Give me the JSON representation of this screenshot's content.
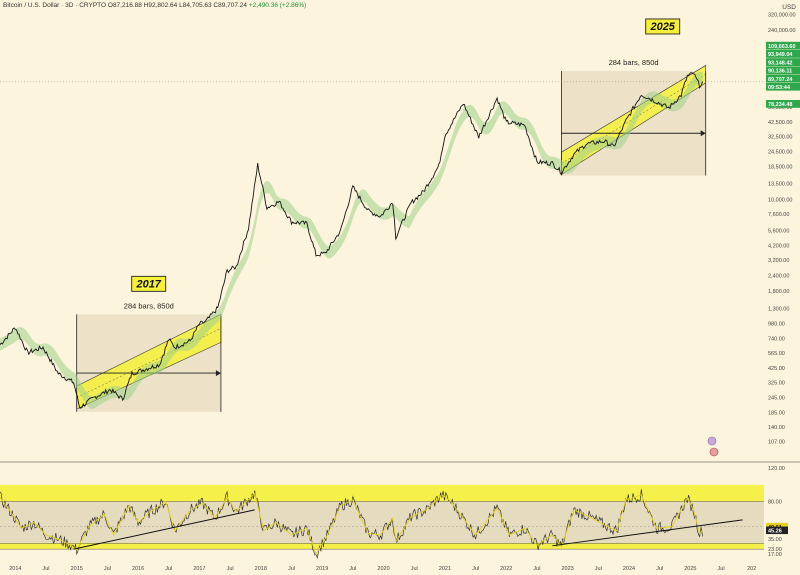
{
  "header": {
    "symbol": "Bitcoin / U.S. Dollar · 3D · CRYPTO",
    "ohlc": "O87,216.88 H92,802.64 L84,705.63 C89,707.24",
    "change": "+2,490.36 (+2.86%)",
    "currency": "USD"
  },
  "chart_data": [
    {
      "type": "line",
      "description_series": "BTC price (log scale)",
      "yscale": "log",
      "ylim": [
        75,
        320000
      ],
      "price_ticks": [
        320000,
        240000,
        180000,
        130000,
        93148.42,
        56500,
        42500,
        32500,
        24500,
        18500,
        13500,
        10000,
        7600,
        5600,
        4200,
        3200,
        2400,
        1800,
        1300,
        980,
        740,
        565,
        425,
        325,
        245,
        185,
        140,
        107
      ],
      "price_tick_labels": [
        "320,000.00",
        "240,000.00",
        "180,000.00",
        "130,000.00",
        "93,148.42",
        "56,500.00",
        "42,500.00",
        "32,500.00",
        "24,500.00",
        "18,500.00",
        "13,500.00",
        "10,000.00",
        "7,600.00",
        "5,600.00",
        "4,200.00",
        "3,200.00",
        "2,400.00",
        "1,800.00",
        "1,300.00",
        "980.00",
        "740.00",
        "565.00",
        "425.00",
        "325.00",
        "245.00",
        "185.00",
        "140.00",
        "107.00"
      ],
      "x_ticks": [
        "2014",
        "Jul",
        "2015",
        "Jul",
        "2016",
        "Jul",
        "2017",
        "Jul",
        "2018",
        "Jul",
        "2019",
        "Jul",
        "2020",
        "Jul",
        "2021",
        "Jul",
        "2022",
        "Jul",
        "2023",
        "Jul",
        "2024",
        "Jul",
        "2025",
        "Jul",
        "202"
      ],
      "price_points": [
        [
          2013.75,
          650
        ],
        [
          2014.0,
          900
        ],
        [
          2014.2,
          560
        ],
        [
          2014.45,
          620
        ],
        [
          2014.7,
          380
        ],
        [
          2014.95,
          320
        ],
        [
          2015.05,
          200
        ],
        [
          2015.3,
          245
        ],
        [
          2015.55,
          280
        ],
        [
          2015.75,
          235
        ],
        [
          2015.9,
          380
        ],
        [
          2016.1,
          410
        ],
        [
          2016.35,
          450
        ],
        [
          2016.5,
          720
        ],
        [
          2016.6,
          620
        ],
        [
          2016.85,
          700
        ],
        [
          2017.0,
          960
        ],
        [
          2017.1,
          1000
        ],
        [
          2017.3,
          1300
        ],
        [
          2017.45,
          2600
        ],
        [
          2017.6,
          2800
        ],
        [
          2017.8,
          5800
        ],
        [
          2017.95,
          19000
        ],
        [
          2018.1,
          8500
        ],
        [
          2018.3,
          9500
        ],
        [
          2018.5,
          6500
        ],
        [
          2018.75,
          6300
        ],
        [
          2018.9,
          3500
        ],
        [
          2019.05,
          3600
        ],
        [
          2019.3,
          5500
        ],
        [
          2019.5,
          12500
        ],
        [
          2019.75,
          8000
        ],
        [
          2019.95,
          7200
        ],
        [
          2020.15,
          9500
        ],
        [
          2020.2,
          4900
        ],
        [
          2020.45,
          9300
        ],
        [
          2020.65,
          11500
        ],
        [
          2020.9,
          18500
        ],
        [
          2021.0,
          33000
        ],
        [
          2021.3,
          60000
        ],
        [
          2021.55,
          32000
        ],
        [
          2021.85,
          66000
        ],
        [
          2022.0,
          42000
        ],
        [
          2022.3,
          40000
        ],
        [
          2022.5,
          20000
        ],
        [
          2022.75,
          19500
        ],
        [
          2022.9,
          16500
        ],
        [
          2023.1,
          23000
        ],
        [
          2023.3,
          28000
        ],
        [
          2023.6,
          29500
        ],
        [
          2023.75,
          26500
        ],
        [
          2023.95,
          43000
        ],
        [
          2024.2,
          71000
        ],
        [
          2024.5,
          60000
        ],
        [
          2024.65,
          55000
        ],
        [
          2024.85,
          70000
        ],
        [
          2024.95,
          100000
        ],
        [
          2025.05,
          105000
        ],
        [
          2025.15,
          84000
        ],
        [
          2025.2,
          89707.24
        ]
      ],
      "current_price": "89,707.24",
      "price_label_stack": [
        "109,663.60",
        "93,949.04",
        "93,148.42",
        "90,136.11",
        "89,707.24",
        "09:53:44",
        "78,234.48"
      ],
      "annotations": [
        {
          "label": "2017",
          "note": "284 bars, 850d",
          "x0": 2015.0,
          "x1": 2017.35,
          "ylo": 185,
          "yhi": 1150,
          "c_lo": [
            2015.0,
            195,
            2017.35,
            680
          ],
          "c_hi": [
            2015.0,
            300,
            2017.35,
            1150
          ]
        },
        {
          "label": "2025",
          "note": "284 bars, 850d",
          "x0": 2022.9,
          "x1": 2025.25,
          "ylo": 15500,
          "yhi": 110000,
          "c_lo": [
            2022.9,
            15800,
            2025.25,
            88000
          ],
          "c_hi": [
            2022.9,
            24000,
            2025.25,
            122000
          ]
        }
      ]
    },
    {
      "type": "line",
      "description_series": "RSI",
      "ylim": [
        10,
        125
      ],
      "rsi_ticks": [
        120,
        80,
        49.61,
        45.26,
        35,
        23,
        17
      ],
      "rsi_tick_labels": [
        "120.00",
        "80.00",
        "49.61",
        "45.26",
        "35.00",
        "23.00",
        "17.00"
      ],
      "bands": {
        "top": [
          100,
          80
        ],
        "bottom": [
          23,
          30
        ]
      },
      "rsi_points": [
        [
          2013.75,
          85
        ],
        [
          2013.95,
          65
        ],
        [
          2014.1,
          48
        ],
        [
          2014.3,
          55
        ],
        [
          2014.5,
          40
        ],
        [
          2014.7,
          35
        ],
        [
          2014.9,
          28
        ],
        [
          2015.0,
          22
        ],
        [
          2015.2,
          50
        ],
        [
          2015.45,
          65
        ],
        [
          2015.6,
          40
        ],
        [
          2015.85,
          75
        ],
        [
          2016.0,
          55
        ],
        [
          2016.2,
          68
        ],
        [
          2016.45,
          80
        ],
        [
          2016.6,
          45
        ],
        [
          2016.85,
          70
        ],
        [
          2017.05,
          78
        ],
        [
          2017.25,
          60
        ],
        [
          2017.45,
          85
        ],
        [
          2017.6,
          68
        ],
        [
          2017.9,
          90
        ],
        [
          2018.05,
          45
        ],
        [
          2018.25,
          55
        ],
        [
          2018.5,
          40
        ],
        [
          2018.75,
          48
        ],
        [
          2018.9,
          17
        ],
        [
          2019.1,
          42
        ],
        [
          2019.3,
          75
        ],
        [
          2019.5,
          82
        ],
        [
          2019.75,
          42
        ],
        [
          2019.95,
          40
        ],
        [
          2020.15,
          60
        ],
        [
          2020.2,
          32
        ],
        [
          2020.45,
          62
        ],
        [
          2020.7,
          70
        ],
        [
          2020.95,
          88
        ],
        [
          2021.1,
          80
        ],
        [
          2021.3,
          60
        ],
        [
          2021.5,
          40
        ],
        [
          2021.85,
          72
        ],
        [
          2022.05,
          40
        ],
        [
          2022.3,
          48
        ],
        [
          2022.5,
          28
        ],
        [
          2022.75,
          40
        ],
        [
          2022.9,
          26
        ],
        [
          2023.1,
          70
        ],
        [
          2023.35,
          62
        ],
        [
          2023.6,
          52
        ],
        [
          2023.8,
          45
        ],
        [
          2023.95,
          82
        ],
        [
          2024.2,
          88
        ],
        [
          2024.45,
          48
        ],
        [
          2024.7,
          50
        ],
        [
          2024.95,
          84
        ],
        [
          2025.05,
          70
        ],
        [
          2025.15,
          42
        ],
        [
          2025.2,
          45.26
        ]
      ],
      "trendlines": [
        [
          2014.95,
          23,
          2017.9,
          70
        ],
        [
          2022.75,
          27,
          2025.85,
          58
        ]
      ]
    }
  ]
}
